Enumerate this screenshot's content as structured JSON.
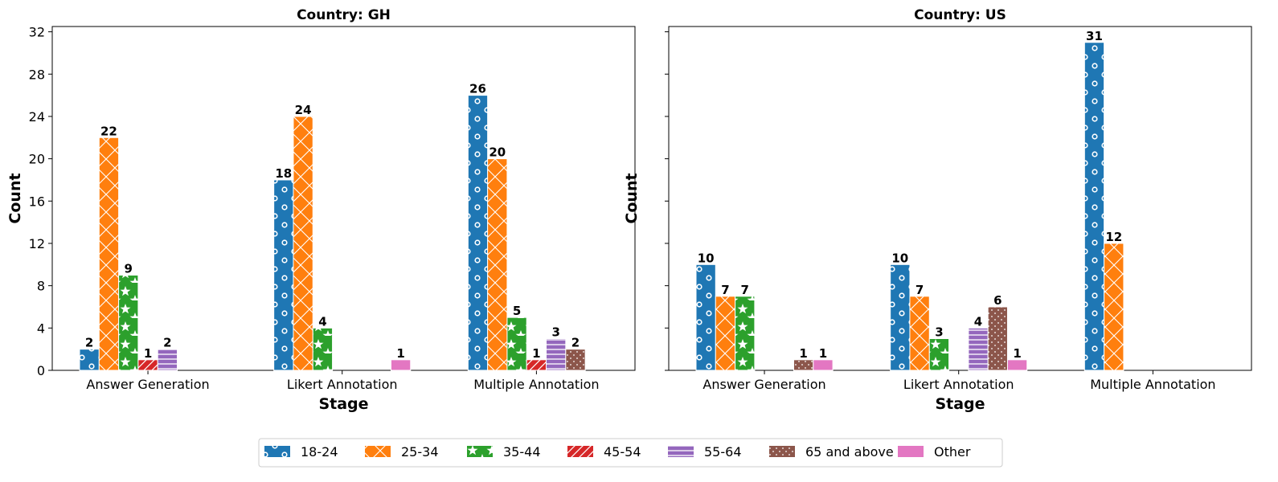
{
  "chart_data": [
    {
      "type": "bar",
      "title": "Country: GH",
      "xlabel": "Stage",
      "ylabel": "Count",
      "ylim": [
        0,
        32.5
      ],
      "yticks": [
        "0",
        "4",
        "8",
        "12",
        "16",
        "20",
        "24",
        "28",
        "32"
      ],
      "categories": [
        "Answer Generation",
        "Likert Annotation",
        "Multiple Annotation"
      ],
      "series": [
        {
          "name": "18-24",
          "values": [
            2,
            18,
            26
          ]
        },
        {
          "name": "25-34",
          "values": [
            22,
            24,
            20
          ]
        },
        {
          "name": "35-44",
          "values": [
            9,
            4,
            5
          ]
        },
        {
          "name": "45-54",
          "values": [
            1,
            null,
            1
          ]
        },
        {
          "name": "55-64",
          "values": [
            2,
            null,
            3
          ]
        },
        {
          "name": "65 and above",
          "values": [
            null,
            null,
            2
          ]
        },
        {
          "name": "Other",
          "values": [
            null,
            1,
            null
          ]
        }
      ]
    },
    {
      "type": "bar",
      "title": "Country: US",
      "xlabel": "Stage",
      "ylabel": "Count",
      "ylim": [
        0,
        32.5
      ],
      "categories": [
        "Answer Generation",
        "Likert Annotation",
        "Multiple Annotation"
      ],
      "series": [
        {
          "name": "18-24",
          "values": [
            10,
            10,
            31
          ]
        },
        {
          "name": "25-34",
          "values": [
            7,
            7,
            12
          ]
        },
        {
          "name": "35-44",
          "values": [
            7,
            3,
            null
          ]
        },
        {
          "name": "45-54",
          "values": [
            null,
            null,
            null
          ]
        },
        {
          "name": "55-64",
          "values": [
            null,
            4,
            null
          ]
        },
        {
          "name": "65 and above",
          "values": [
            1,
            6,
            null
          ]
        },
        {
          "name": "Other",
          "values": [
            1,
            1,
            null
          ]
        }
      ]
    }
  ],
  "legend": {
    "position": "bottom-center",
    "entries": [
      "18-24",
      "25-34",
      "35-44",
      "45-54",
      "55-64",
      "65 and above",
      "Other"
    ]
  },
  "colors": {
    "18-24": "#1f77b4",
    "25-34": "#ff7f0e",
    "35-44": "#2ca02c",
    "45-54": "#d62728",
    "55-64": "#9467bd",
    "65 and above": "#8c564b",
    "Other": "#e377c2"
  }
}
